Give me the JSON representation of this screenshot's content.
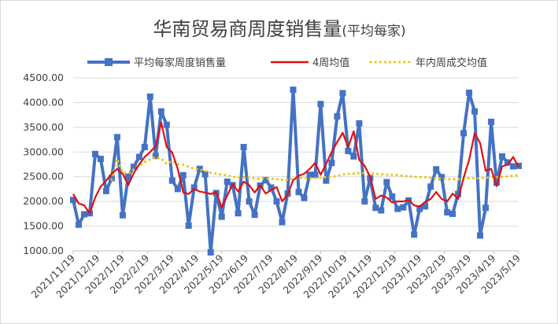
{
  "chart_data": {
    "type": "line",
    "title": "华南贸易商周度销售量",
    "subtitle": "(平均每家)",
    "ylim": [
      1000,
      4500
    ],
    "yticks": [
      "1000.00",
      "1500.00",
      "2000.00",
      "2500.00",
      "3000.00",
      "3500.00",
      "4000.00",
      "4500.00"
    ],
    "x_tick_labels": [
      "2021/11/19",
      "2021/12/19",
      "2022/1/19",
      "2022/2/19",
      "2022/3/19",
      "2022/4/19",
      "2022/5/19",
      "2022/6/19",
      "2022/7/19",
      "2022/8/19",
      "2022/9/19",
      "2022/10/19",
      "2022/11/19",
      "2022/12/19",
      "2023/1/19",
      "2023/2/19",
      "2023/3/19",
      "2023/4/19",
      "2023/5/19"
    ],
    "grid": "horizontal",
    "legend_position": "top",
    "series": [
      {
        "name": "平均每家周度销售量",
        "color": "#4472C4",
        "marker": "square",
        "values": [
          2030,
          1530,
          1740,
          1760,
          2960,
          2860,
          2210,
          2470,
          3300,
          1720,
          2500,
          2700,
          2900,
          3100,
          4120,
          2920,
          3820,
          3550,
          2420,
          2250,
          2530,
          1510,
          2280,
          2660,
          2550,
          970,
          2170,
          1690,
          2400,
          2330,
          1760,
          3100,
          2000,
          1730,
          2320,
          2430,
          2280,
          2000,
          1580,
          2160,
          4260,
          2190,
          2070,
          2540,
          2540,
          3970,
          2420,
          2780,
          3720,
          4190,
          3020,
          2910,
          3580,
          2000,
          2470,
          1870,
          1820,
          2390,
          2100,
          1850,
          1880,
          2020,
          1330,
          1850,
          1900,
          2300,
          2650,
          2490,
          1780,
          1750,
          2150,
          3380,
          4200,
          3820,
          1310,
          1870,
          3610,
          2380,
          2910,
          2790,
          2710,
          2720
        ]
      },
      {
        "name": "4周均值",
        "color": "#E01010",
        "values": [
          2150,
          1960,
          1920,
          1760,
          2080,
          2300,
          2420,
          2560,
          2660,
          2560,
          2330,
          2570,
          2750,
          2900,
          3000,
          3120,
          3600,
          3100,
          2990,
          2660,
          2180,
          2150,
          2250,
          2200,
          2180,
          2150,
          2190,
          1880,
          2120,
          2350,
          2200,
          2400,
          2330,
          2180,
          2330,
          2160,
          2230,
          2290,
          2000,
          2140,
          2430,
          2520,
          2560,
          2660,
          2780,
          2540,
          2760,
          3000,
          3200,
          3390,
          3100,
          3420,
          2840,
          2720,
          2500,
          2050,
          2120,
          2080,
          1980,
          2000,
          2000,
          2030,
          1920,
          1900,
          1990,
          2050,
          2190,
          2050,
          2000,
          2160,
          2050,
          2480,
          2840,
          3380,
          3180,
          2620,
          2660,
          2310,
          2710,
          2740,
          2900,
          2700
        ]
      },
      {
        "name": "年内周成交均值",
        "color": "#F2C200",
        "dotted": true,
        "values": [
          null,
          null,
          null,
          null,
          null,
          null,
          null,
          2440,
          2860,
          2590,
          2560,
          2650,
          2720,
          2800,
          2850,
          2900,
          2870,
          2760,
          2820,
          2750,
          2740,
          2700,
          2660,
          2640,
          2620,
          2580,
          2560,
          2540,
          2530,
          2500,
          2480,
          2490,
          2480,
          2470,
          2460,
          2460,
          2460,
          2450,
          2440,
          2440,
          2460,
          2480,
          2470,
          2470,
          2470,
          2480,
          2490,
          2500,
          2520,
          2540,
          2560,
          2560,
          2570,
          2570,
          2570,
          2560,
          2550,
          2540,
          2540,
          2530,
          2520,
          2510,
          2500,
          2490,
          2490,
          2480,
          2470,
          2460,
          2450,
          2450,
          2450,
          2460,
          2470,
          2470,
          2470,
          2480,
          2490,
          2490,
          2500,
          2510,
          2520,
          2530
        ]
      }
    ]
  }
}
